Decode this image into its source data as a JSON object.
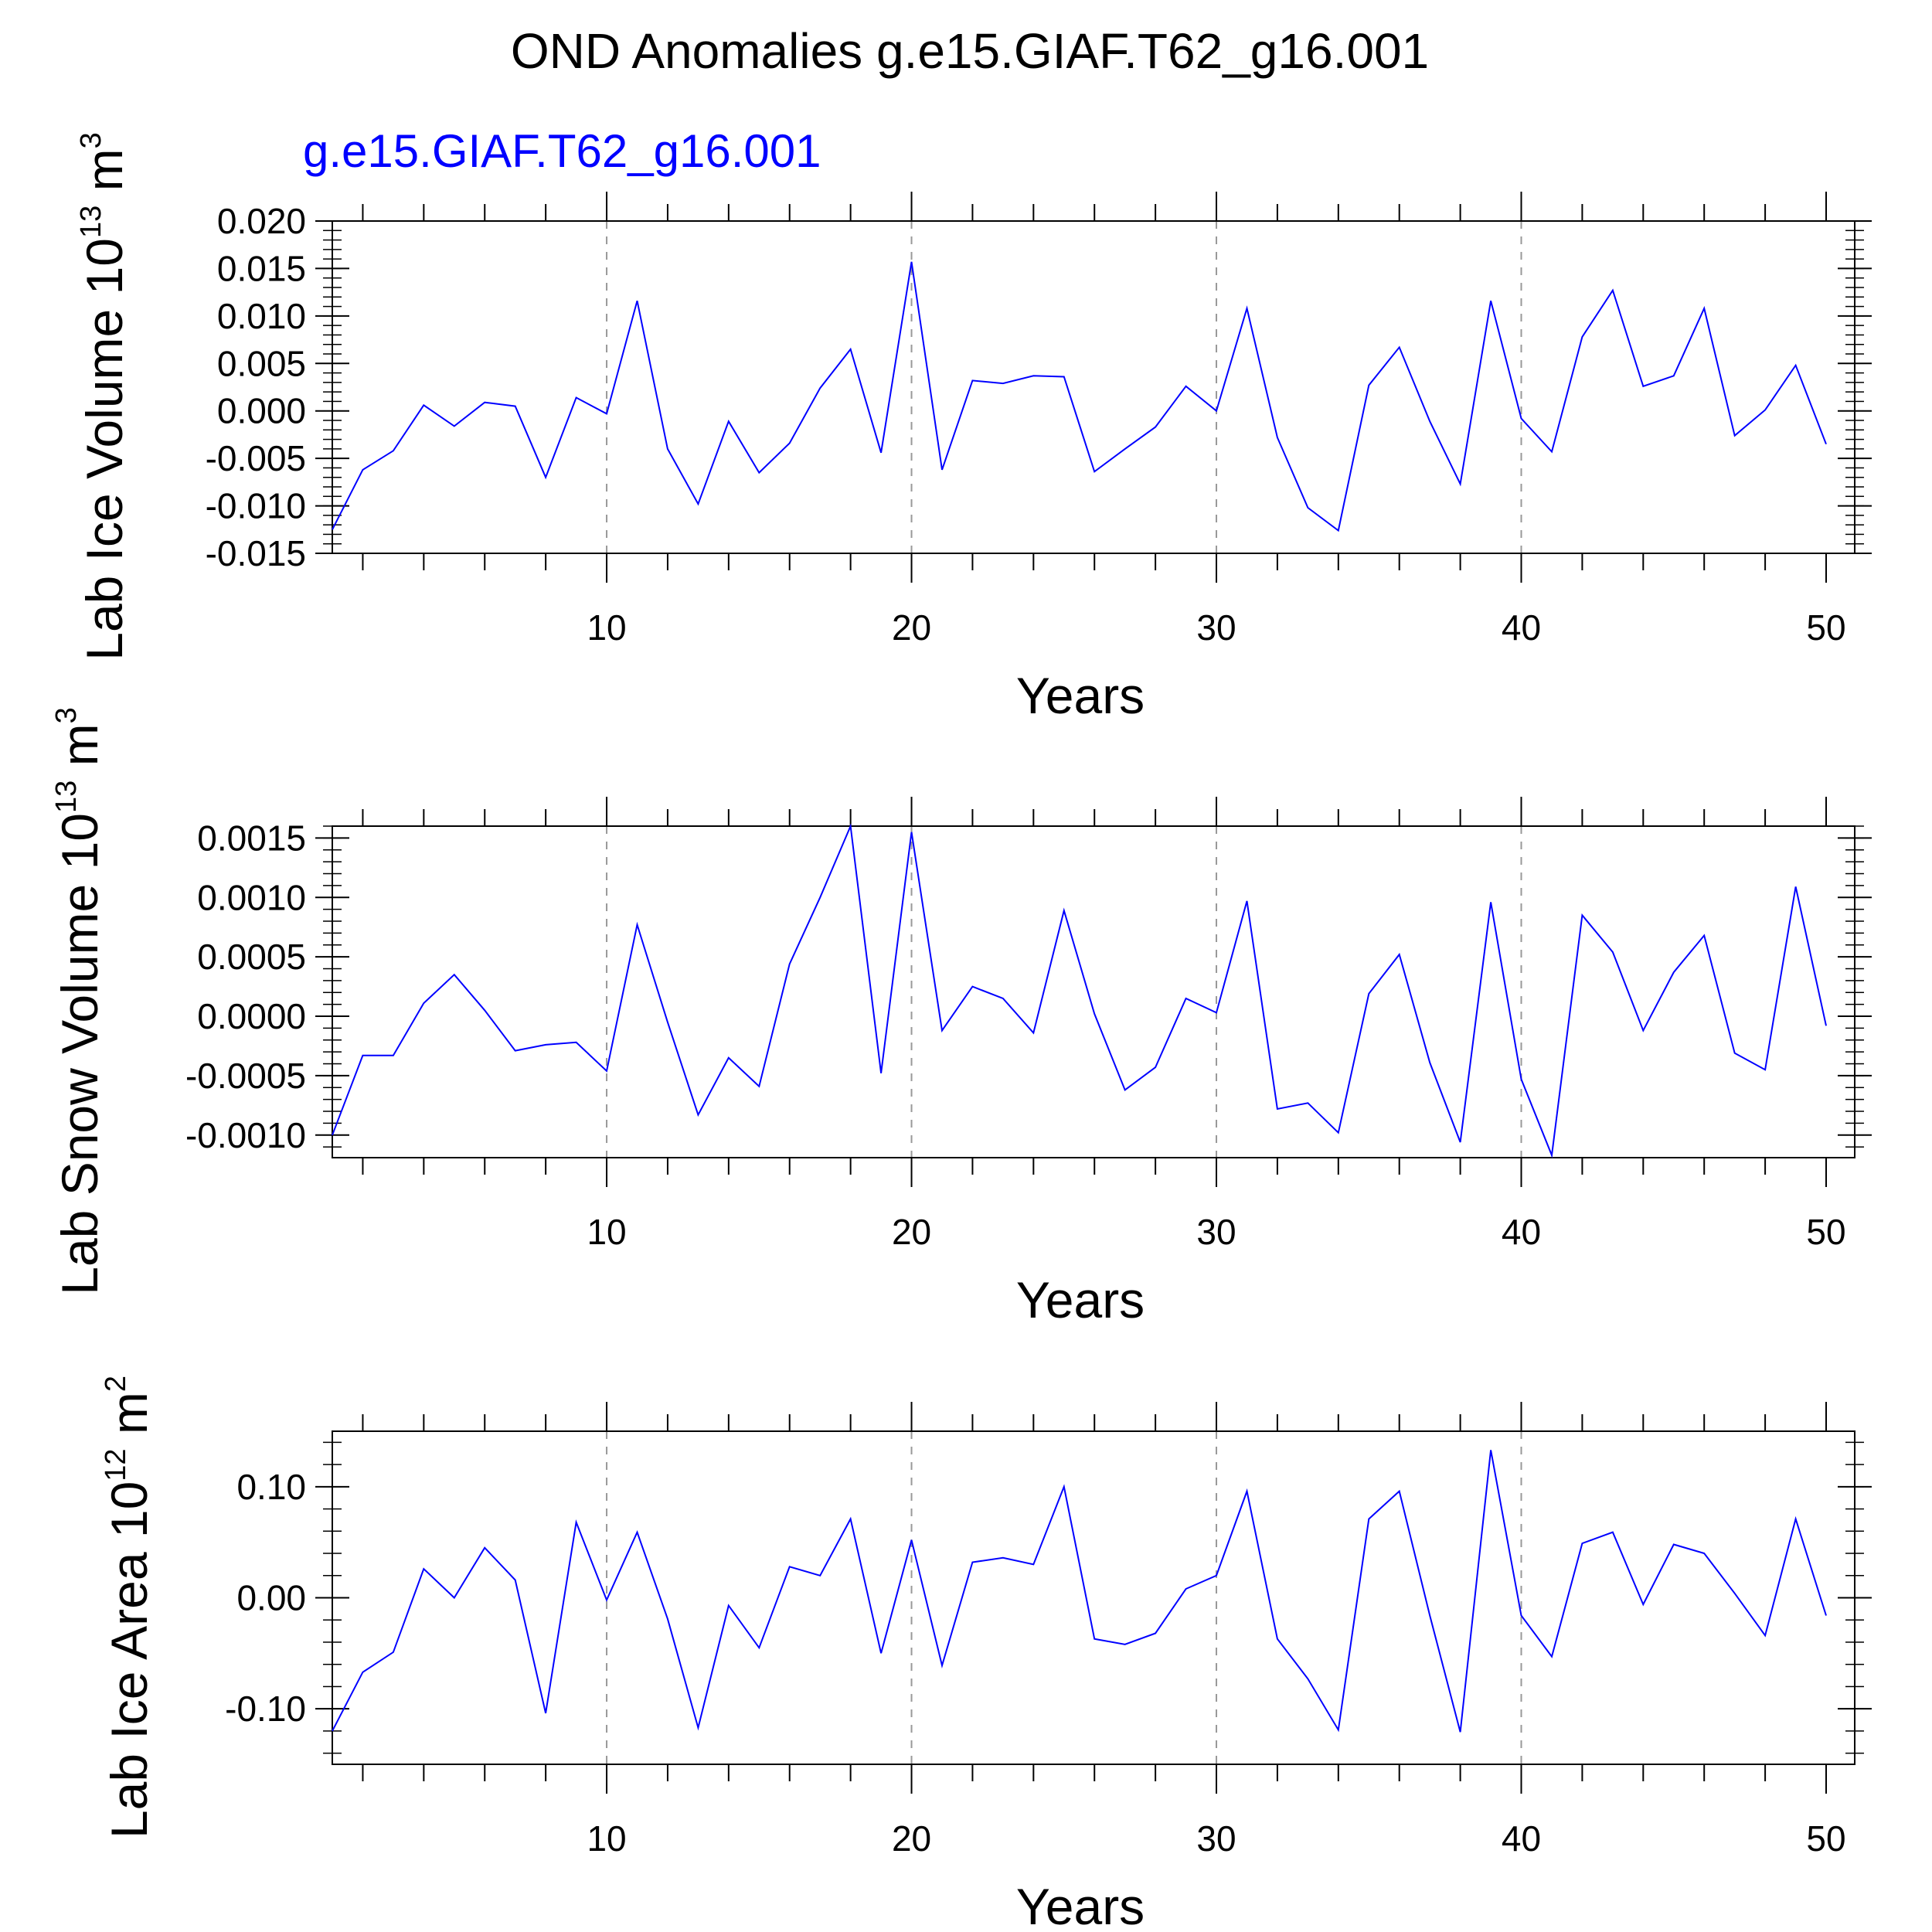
{
  "title": "OND Anomalies g.e15.GIAF.T62_g16.001",
  "colors": {
    "line": "#0000ff",
    "subtitle": "#0000ff",
    "axis": "#000000",
    "grid": "#999999"
  },
  "chart_data": [
    {
      "type": "line",
      "subtitle": "g.e15.GIAF.T62_g16.001",
      "ylabel": {
        "text": "Lab Ice Volume 10",
        "exp": "13",
        "unit": " m",
        "unit_exp": "3"
      },
      "xlabel": "Years",
      "xlim": [
        1,
        50
      ],
      "ylim": [
        -0.015,
        0.02
      ],
      "xticks": [
        10,
        20,
        30,
        40,
        50
      ],
      "yticks": [
        -0.015,
        -0.01,
        -0.005,
        0.0,
        0.005,
        0.01,
        0.015,
        0.02
      ],
      "ytick_labels": [
        "-0.015",
        "-0.010",
        "-0.005",
        "0.000",
        "0.005",
        "0.010",
        "0.015",
        "0.020"
      ],
      "ytick_minor_step": 0.001,
      "grid": "vertical dashed at 10,20,30,40",
      "series": [
        {
          "x": [
            1,
            2,
            3,
            4,
            5,
            6,
            7,
            8,
            9,
            10,
            11,
            12,
            13,
            14,
            15,
            16,
            17,
            18,
            19,
            20,
            21,
            22,
            23,
            24,
            25,
            26,
            27,
            28,
            29,
            30,
            31,
            32,
            33,
            34,
            35,
            36,
            37,
            38,
            39,
            40,
            41,
            42,
            43,
            44,
            45,
            46,
            47,
            48,
            49,
            50
          ],
          "values": [
            -0.0125,
            -0.0062,
            -0.0042,
            0.0006,
            -0.0016,
            0.0009,
            0.0005,
            -0.007,
            0.0014,
            -0.0003,
            0.0116,
            -0.004,
            -0.0098,
            -0.0011,
            -0.0065,
            -0.0034,
            0.0024,
            0.0065,
            -0.0044,
            0.0157,
            -0.0062,
            0.0032,
            0.0029,
            0.0037,
            0.0036,
            -0.0064,
            -0.004,
            -0.0017,
            0.0026,
            0.0,
            0.0108,
            -0.0028,
            -0.0102,
            -0.0126,
            0.0027,
            0.0067,
            -0.0011,
            -0.0077,
            0.0116,
            -0.0008,
            -0.0043,
            0.0078,
            0.0127,
            0.0026,
            0.0037,
            0.0108,
            -0.0026,
            0.0001,
            0.0048,
            -0.0035
          ]
        }
      ]
    },
    {
      "type": "line",
      "ylabel": {
        "text": "Lab Snow Volume 10",
        "exp": "13",
        "unit": " m",
        "unit_exp": "3"
      },
      "xlabel": "Years",
      "xlim": [
        1,
        50
      ],
      "ylim": [
        -0.00119,
        0.0016
      ],
      "xticks": [
        10,
        20,
        30,
        40,
        50
      ],
      "yticks": [
        -0.001,
        -0.0005,
        0.0,
        0.0005,
        0.001,
        0.0015
      ],
      "ytick_labels": [
        "-0.0010",
        "-0.0005",
        "0.0000",
        "0.0005",
        "0.0010",
        "0.0015"
      ],
      "ytick_minor_step": 0.0001,
      "grid": "vertical dashed at 10,20,30,40",
      "series": [
        {
          "x": [
            1,
            2,
            3,
            4,
            5,
            6,
            7,
            8,
            9,
            10,
            11,
            12,
            13,
            14,
            15,
            16,
            17,
            18,
            19,
            20,
            21,
            22,
            23,
            24,
            25,
            26,
            27,
            28,
            29,
            30,
            31,
            32,
            33,
            34,
            35,
            36,
            37,
            38,
            39,
            40,
            41,
            42,
            43,
            44,
            45,
            46,
            47,
            48,
            49,
            50
          ],
          "values": [
            -0.001,
            -0.00033,
            -0.00033,
            0.00011,
            0.00035,
            5e-05,
            -0.00029,
            -0.00024,
            -0.00022,
            -0.00046,
            0.00077,
            -5e-05,
            -0.00083,
            -0.00035,
            -0.00059,
            0.00044,
            0.001,
            0.0016,
            -0.00048,
            0.00155,
            -0.00012,
            0.00025,
            0.00015,
            -0.00014,
            0.00089,
            2e-05,
            -0.00062,
            -0.00043,
            0.00015,
            3e-05,
            0.00097,
            -0.00078,
            -0.00073,
            -0.00098,
            0.00019,
            0.00052,
            -0.00039,
            -0.00106,
            0.00096,
            -0.00053,
            -0.00117,
            0.00085,
            0.00054,
            -0.00012,
            0.00037,
            0.00068,
            -0.00031,
            -0.00045,
            0.00109,
            -8e-05
          ]
        }
      ]
    },
    {
      "type": "line",
      "ylabel": {
        "text": "Lab Ice Area 10",
        "exp": "12",
        "unit": " m",
        "unit_exp": "2"
      },
      "xlabel": "Years",
      "xlim": [
        1,
        50
      ],
      "ylim": [
        -0.15,
        0.15
      ],
      "xticks": [
        10,
        20,
        30,
        40,
        50
      ],
      "yticks": [
        -0.1,
        0.0,
        0.1
      ],
      "ytick_labels": [
        "-0.10",
        "0.00",
        "0.10"
      ],
      "ytick_minor_step": 0.02,
      "grid": "vertical dashed at 10,20,30,40",
      "series": [
        {
          "x": [
            1,
            2,
            3,
            4,
            5,
            6,
            7,
            8,
            9,
            10,
            11,
            12,
            13,
            14,
            15,
            16,
            17,
            18,
            19,
            20,
            21,
            22,
            23,
            24,
            25,
            26,
            27,
            28,
            29,
            30,
            31,
            32,
            33,
            34,
            35,
            36,
            37,
            38,
            39,
            40,
            41,
            42,
            43,
            44,
            45,
            46,
            47,
            48,
            49,
            50
          ],
          "values": [
            -0.12,
            -0.067,
            -0.049,
            0.026,
            0.0,
            0.045,
            0.016,
            -0.104,
            0.068,
            -0.002,
            0.059,
            -0.019,
            -0.117,
            -0.007,
            -0.045,
            0.028,
            0.02,
            0.071,
            -0.05,
            0.052,
            -0.061,
            0.032,
            0.036,
            0.03,
            0.1,
            -0.037,
            -0.042,
            -0.032,
            0.008,
            0.02,
            0.096,
            -0.037,
            -0.073,
            -0.119,
            0.071,
            0.096,
            -0.016,
            -0.121,
            0.133,
            -0.016,
            -0.053,
            0.049,
            0.059,
            -0.006,
            0.048,
            0.04,
            0.004,
            -0.034,
            0.071,
            -0.016
          ]
        }
      ]
    }
  ]
}
